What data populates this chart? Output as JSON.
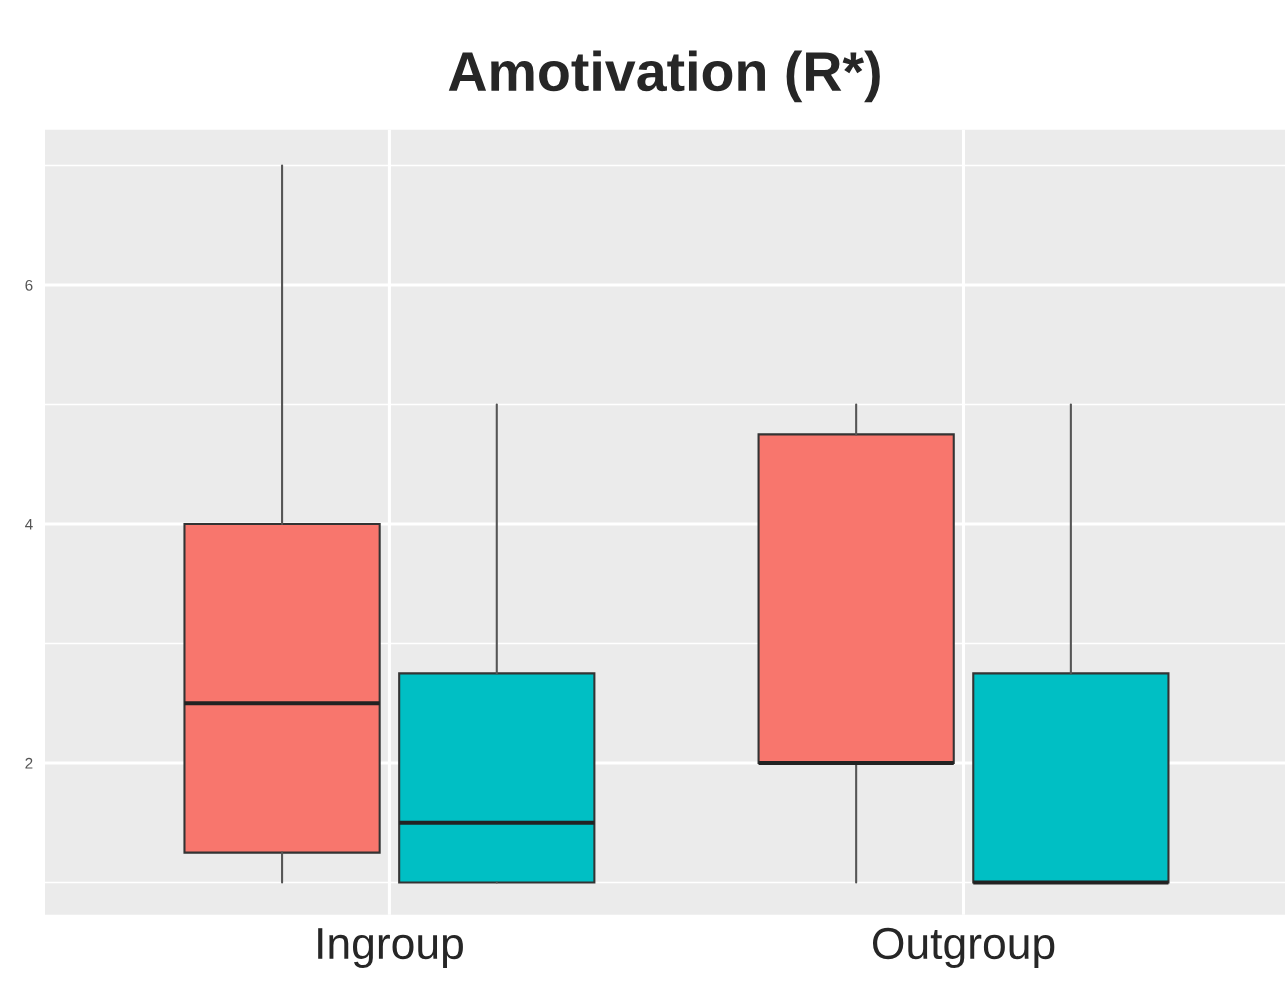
{
  "chart_data": {
    "type": "box",
    "title": "Amotivation (R*)",
    "categories": [
      "Ingroup",
      "Outgroup"
    ],
    "series": [
      {
        "color": "#f8766d",
        "boxes": [
          {
            "low": 1,
            "q1": 1.25,
            "median": 2.5,
            "q3": 4,
            "high": 7
          },
          {
            "low": 1,
            "q1": 2,
            "median": 2,
            "q3": 4.75,
            "high": 5
          }
        ]
      },
      {
        "color": "#00bfc4",
        "boxes": [
          {
            "low": 1,
            "q1": 1,
            "median": 1.5,
            "q3": 2.75,
            "high": 5
          },
          {
            "low": 1,
            "q1": 1,
            "median": 1,
            "q3": 2.75,
            "high": 5
          }
        ]
      }
    ],
    "ylim": [
      0.73,
      7.3
    ],
    "yticks": [
      2,
      4,
      6
    ],
    "grid": true
  }
}
